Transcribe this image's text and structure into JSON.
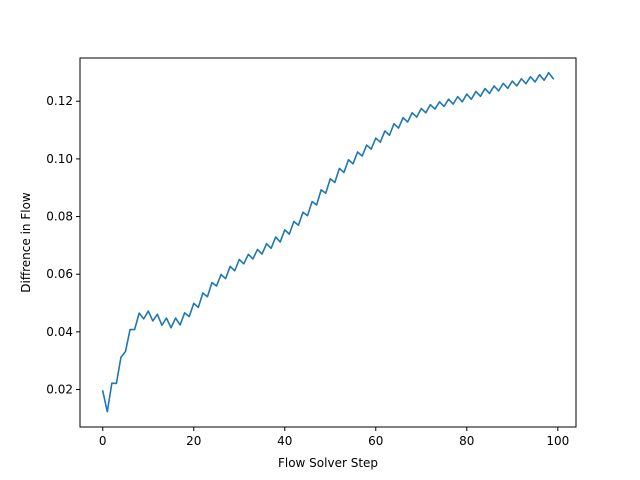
{
  "chart_data": {
    "type": "line",
    "title": "",
    "xlabel": "Flow Solver Step",
    "ylabel": "Diffrence in Flow",
    "xlim": [
      -5,
      104
    ],
    "ylim": [
      0.007,
      0.135
    ],
    "grid": false,
    "xticks": [
      0,
      20,
      40,
      60,
      80,
      100
    ],
    "xtick_labels": [
      "0",
      "20",
      "40",
      "60",
      "80",
      "100"
    ],
    "yticks": [
      0.02,
      0.04,
      0.06,
      0.08,
      0.1,
      0.12
    ],
    "ytick_labels": [
      "0.02",
      "0.04",
      "0.06",
      "0.08",
      "0.10",
      "0.12"
    ],
    "series": [
      {
        "color": "#1f77b4",
        "x": [
          0,
          1,
          2,
          3,
          4,
          5,
          6,
          7,
          8,
          9,
          10,
          11,
          12,
          13,
          14,
          15,
          16,
          17,
          18,
          19,
          20,
          21,
          22,
          23,
          24,
          25,
          26,
          27,
          28,
          29,
          30,
          31,
          32,
          33,
          34,
          35,
          36,
          37,
          38,
          39,
          40,
          41,
          42,
          43,
          44,
          45,
          46,
          47,
          48,
          49,
          50,
          51,
          52,
          53,
          54,
          55,
          56,
          57,
          58,
          59,
          60,
          61,
          62,
          63,
          64,
          65,
          66,
          67,
          68,
          69,
          70,
          71,
          72,
          73,
          74,
          75,
          76,
          77,
          78,
          79,
          80,
          81,
          82,
          83,
          84,
          85,
          86,
          87,
          88,
          89,
          90,
          91,
          92,
          93,
          94,
          95,
          96,
          97,
          98,
          99
        ],
        "y": [
          0.0195,
          0.0123,
          0.0222,
          0.0221,
          0.0312,
          0.0332,
          0.0408,
          0.0408,
          0.0465,
          0.0445,
          0.0472,
          0.0438,
          0.0461,
          0.0423,
          0.0448,
          0.0414,
          0.0448,
          0.0424,
          0.0466,
          0.0453,
          0.0499,
          0.0485,
          0.0535,
          0.0522,
          0.0571,
          0.0559,
          0.0599,
          0.0585,
          0.0627,
          0.0612,
          0.0651,
          0.0636,
          0.0669,
          0.0653,
          0.0686,
          0.067,
          0.0706,
          0.069,
          0.0729,
          0.0712,
          0.0754,
          0.0739,
          0.0783,
          0.077,
          0.0815,
          0.0803,
          0.0852,
          0.084,
          0.0893,
          0.0881,
          0.0931,
          0.0918,
          0.0967,
          0.0953,
          0.0997,
          0.0983,
          0.1024,
          0.101,
          0.1048,
          0.1034,
          0.1072,
          0.1058,
          0.1097,
          0.1082,
          0.1122,
          0.1107,
          0.1143,
          0.1128,
          0.116,
          0.1145,
          0.1175,
          0.116,
          0.1188,
          0.1173,
          0.1198,
          0.1182,
          0.1207,
          0.119,
          0.1216,
          0.1198,
          0.1225,
          0.1207,
          0.1234,
          0.1217,
          0.1244,
          0.1227,
          0.1253,
          0.1236,
          0.1262,
          0.1245,
          0.127,
          0.1253,
          0.1278,
          0.1261,
          0.1285,
          0.1267,
          0.1292,
          0.1273,
          0.1299,
          0.1278
        ]
      }
    ]
  }
}
